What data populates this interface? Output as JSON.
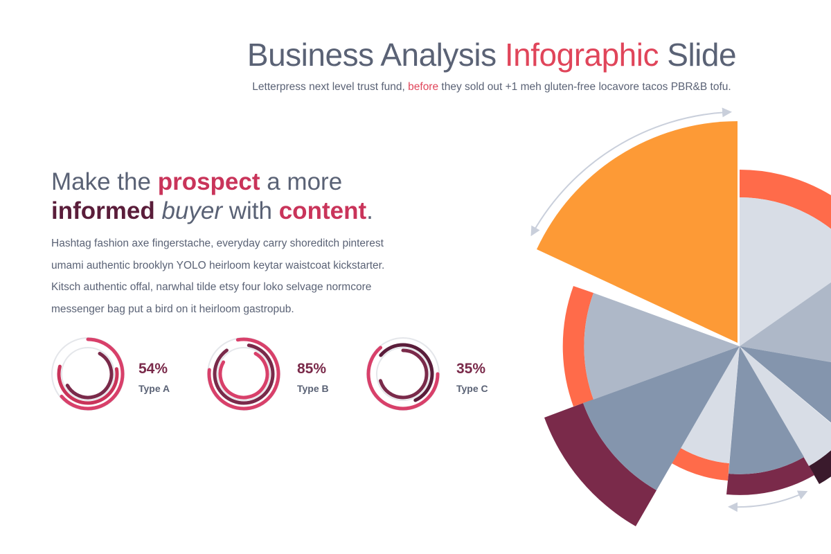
{
  "header": {
    "title": [
      "Business Analysis ",
      "Infographic",
      " Slide"
    ],
    "subtitle": [
      "Letterpress next level trust fund, ",
      "before",
      " they sold out +1 meh gluten-free locavore tacos PBR&B tofu."
    ]
  },
  "heading": {
    "line1": [
      "Make the ",
      "prospect",
      " a more"
    ],
    "line2": [
      "informed",
      " buyer",
      " with ",
      "content",
      "."
    ]
  },
  "body": [
    "Hashtag fashion axe fingerstache, everyday carry shoreditch pinterest",
    "umami authentic brooklyn YOLO heirloom keytar waistcoat kickstarter.",
    "Kitsch authentic offal, narwhal tilde etsy four loko selvage normcore",
    "messenger bag put a bird on it heirloom gastropub."
  ],
  "gauges": [
    {
      "value": "54%",
      "label": "Type A"
    },
    {
      "value": "85%",
      "label": "Type B"
    },
    {
      "value": "35%",
      "label": "Type C"
    }
  ]
}
